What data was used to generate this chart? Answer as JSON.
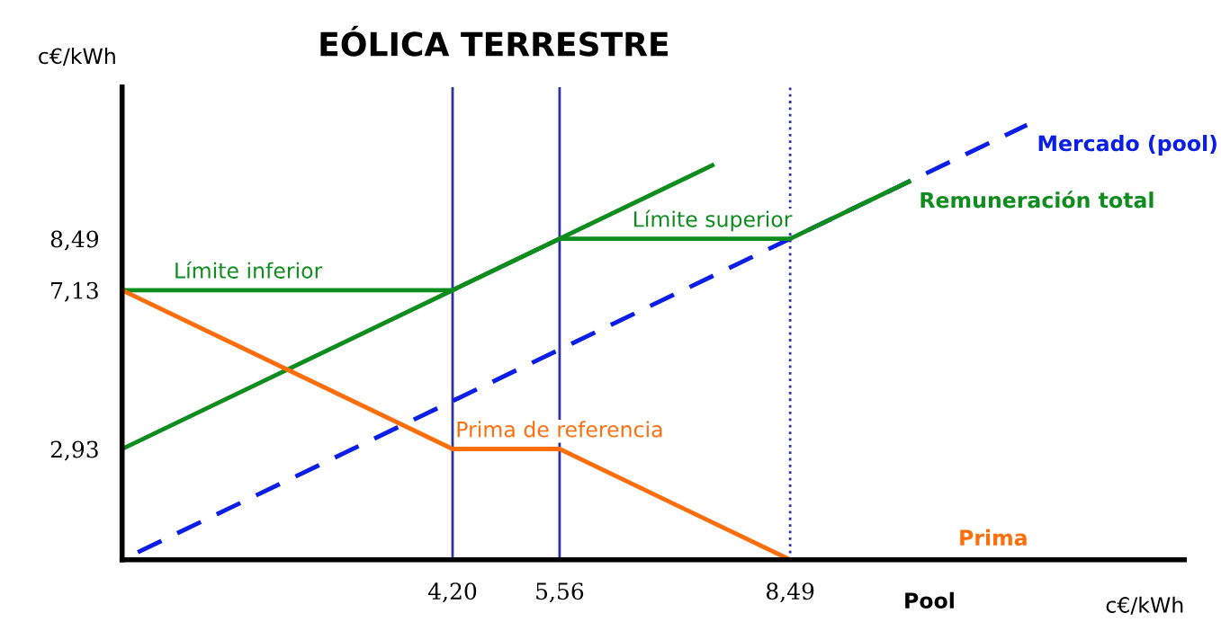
{
  "chart_data": {
    "type": "line",
    "title": "EÓLICA TERRESTRE",
    "xlabel": "c€/kWh",
    "ylabel": "c€/kWh",
    "xlim": [
      0,
      13.5
    ],
    "ylim": [
      0,
      12.5
    ],
    "xticks": [
      {
        "value": 4.2,
        "label": "4,20"
      },
      {
        "value": 5.56,
        "label": "5,56"
      },
      {
        "value": 8.49,
        "label": "8,49"
      }
    ],
    "yticks": [
      {
        "value": 2.93,
        "label": "2,93"
      },
      {
        "value": 7.13,
        "label": "7,13"
      },
      {
        "value": 8.49,
        "label": "8,49"
      }
    ],
    "series": [
      {
        "name": "Mercado (pool)",
        "color": "#0a1ee6",
        "line_style": "dashed",
        "x": [
          0.2,
          11.5
        ],
        "values": [
          0.2,
          11.5
        ]
      },
      {
        "color": "#0f8c1e",
        "x": [
          0,
          7.5
        ],
        "values": [
          2.93,
          10.43
        ]
      },
      {
        "name": "Remuneración total",
        "color": "#0f8c1e",
        "x": [
          0,
          4.2,
          5.56,
          8.49,
          10
        ],
        "values": [
          7.13,
          7.13,
          8.49,
          8.49,
          10
        ]
      },
      {
        "name": "Prima",
        "color": "#ff6e0a",
        "x": [
          0,
          4.2,
          5.56,
          8.49,
          10.5
        ],
        "values": [
          7.13,
          2.93,
          2.93,
          0,
          0
        ]
      }
    ],
    "ref_lines": [
      {
        "axis": "x",
        "value": 4.2,
        "color": "#3030a0",
        "line_style": "solid"
      },
      {
        "axis": "x",
        "value": 5.56,
        "color": "#3030a0",
        "line_style": "solid"
      },
      {
        "axis": "x",
        "value": 8.49,
        "color": "#3030a0",
        "line_style": "dotted"
      }
    ],
    "annotations": [
      {
        "text": "Límite inferior",
        "x": 1.6,
        "y": 7.13
      },
      {
        "text": "Límite superior",
        "x": 7.5,
        "y": 8.49
      },
      {
        "text": "Prima de referencia",
        "x": 5.56,
        "y": 2.93
      },
      "Pool"
    ],
    "grid": false,
    "legend": false,
    "marker": "none"
  }
}
